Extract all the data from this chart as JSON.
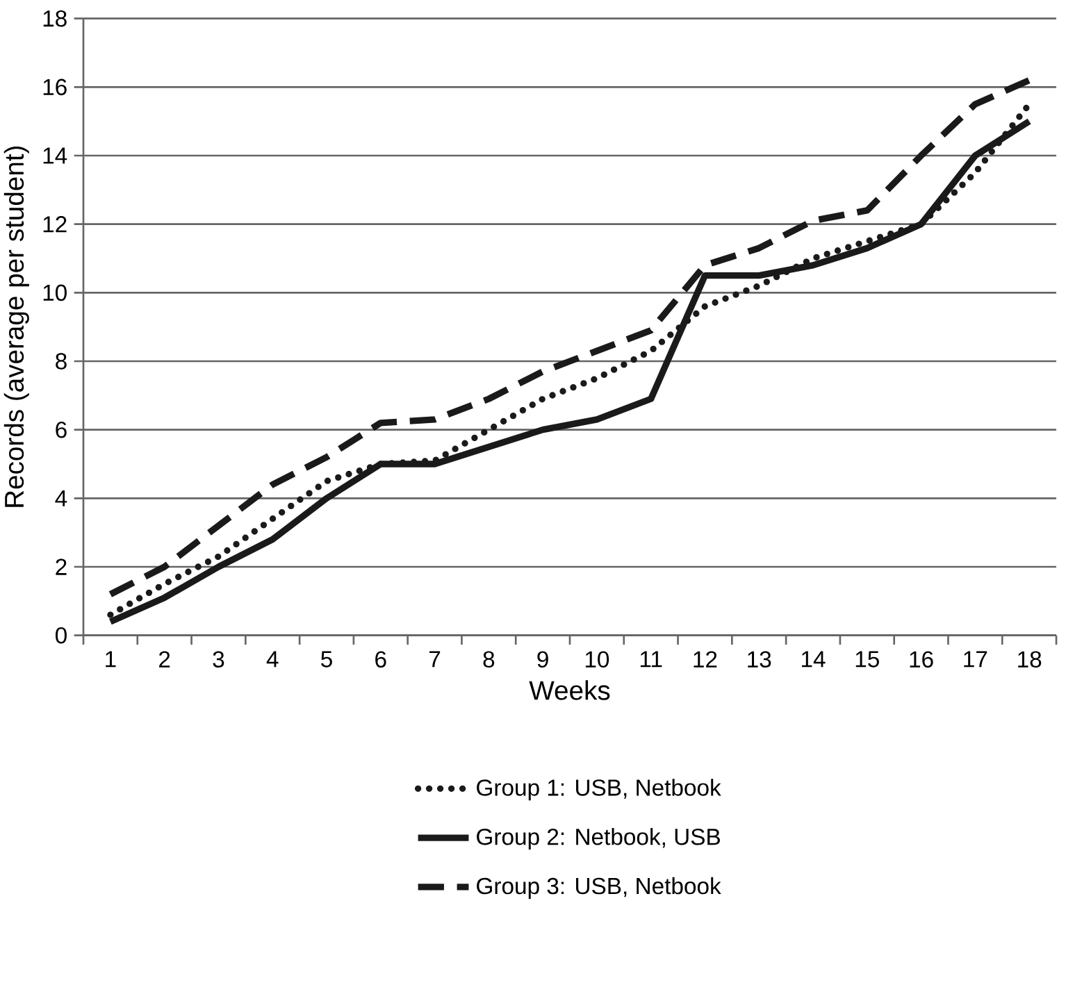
{
  "chart_data": {
    "type": "line",
    "xlabel": "Weeks",
    "ylabel": "Records (average per student)",
    "categories": [
      "1",
      "2",
      "3",
      "4",
      "5",
      "6",
      "7",
      "8",
      "9",
      "10",
      "11",
      "12",
      "13",
      "14",
      "15",
      "16",
      "17",
      "18"
    ],
    "ylim": [
      0,
      18
    ],
    "yticks": [
      0,
      2,
      4,
      6,
      8,
      10,
      12,
      14,
      16,
      18
    ],
    "grid": "y",
    "legend": "bottom",
    "marker": "none",
    "series": [
      {
        "name": "Group 1: USB, Netbook",
        "color": "#1a1a1a",
        "line_style": "dotted",
        "values": [
          0.6,
          1.5,
          2.3,
          3.4,
          4.5,
          5.0,
          5.1,
          6.0,
          6.9,
          7.5,
          8.3,
          9.6,
          10.2,
          11.0,
          11.5,
          12.0,
          13.5,
          15.5
        ]
      },
      {
        "name": "Group 2: Netbook, USB",
        "color": "#1a1a1a",
        "line_style": "solid",
        "values": [
          0.4,
          1.1,
          2.0,
          2.8,
          4.0,
          5.0,
          5.0,
          5.5,
          6.0,
          6.3,
          6.9,
          10.5,
          10.5,
          10.8,
          11.3,
          12.0,
          14.0,
          15.0
        ]
      },
      {
        "name": "Group 3: USB, Netbook",
        "color": "#1a1a1a",
        "line_style": "dashed",
        "values": [
          1.2,
          2.0,
          3.2,
          4.4,
          5.2,
          6.2,
          6.3,
          6.9,
          7.7,
          8.3,
          8.9,
          10.8,
          11.3,
          12.1,
          12.4,
          14.0,
          15.5,
          16.2
        ]
      }
    ]
  }
}
